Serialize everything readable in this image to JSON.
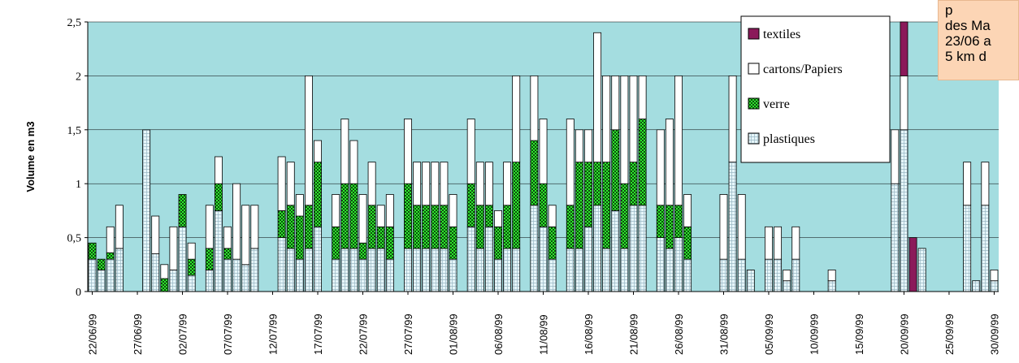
{
  "chart_data": {
    "type": "bar",
    "stacked": true,
    "ylabel": "Volume en m3",
    "xlabel": "",
    "ylim": [
      0,
      2.5
    ],
    "yticks": [
      "0",
      "0,5",
      "1",
      "1,5",
      "2",
      "2,5"
    ],
    "y_gridlines": true,
    "background": "#a4dde0",
    "legend_position": "top-right",
    "x_tick_labels": [
      "22/06/99",
      "27/06/99",
      "02/07/99",
      "07/07/99",
      "12/07/99",
      "17/07/99",
      "22/07/99",
      "27/07/99",
      "01/08/99",
      "06/08/99",
      "11/08/99",
      "16/08/99",
      "21/08/99",
      "26/08/99",
      "31/08/99",
      "05/09/99",
      "10/09/99",
      "15/09/99",
      "20/09/99",
      "25/09/99",
      "30/09/99"
    ],
    "categories": [
      "22/06/99",
      "23/06/99",
      "24/06/99",
      "25/06/99",
      "26/06/99",
      "27/06/99",
      "28/06/99",
      "29/06/99",
      "30/06/99",
      "01/07/99",
      "02/07/99",
      "03/07/99",
      "04/07/99",
      "05/07/99",
      "06/07/99",
      "07/07/99",
      "08/07/99",
      "09/07/99",
      "10/07/99",
      "11/07/99",
      "12/07/99",
      "13/07/99",
      "14/07/99",
      "15/07/99",
      "16/07/99",
      "17/07/99",
      "18/07/99",
      "19/07/99",
      "20/07/99",
      "21/07/99",
      "22/07/99",
      "23/07/99",
      "24/07/99",
      "25/07/99",
      "26/07/99",
      "27/07/99",
      "28/07/99",
      "29/07/99",
      "30/07/99",
      "31/07/99",
      "01/08/99",
      "02/08/99",
      "03/08/99",
      "04/08/99",
      "05/08/99",
      "06/08/99",
      "07/08/99",
      "08/08/99",
      "09/08/99",
      "10/08/99",
      "11/08/99",
      "12/08/99",
      "13/08/99",
      "14/08/99",
      "15/08/99",
      "16/08/99",
      "17/08/99",
      "18/08/99",
      "19/08/99",
      "20/08/99",
      "21/08/99",
      "22/08/99",
      "23/08/99",
      "24/08/99",
      "25/08/99",
      "26/08/99",
      "27/08/99",
      "28/08/99",
      "29/08/99",
      "30/08/99",
      "31/08/99",
      "01/09/99",
      "02/09/99",
      "03/09/99",
      "04/09/99",
      "05/09/99",
      "06/09/99",
      "07/09/99",
      "08/09/99",
      "09/09/99",
      "10/09/99",
      "11/09/99",
      "12/09/99",
      "13/09/99",
      "14/09/99",
      "15/09/99",
      "16/09/99",
      "17/09/99",
      "18/09/99",
      "19/09/99",
      "20/09/99",
      "21/09/99",
      "22/09/99",
      "23/09/99",
      "24/09/99",
      "25/09/99",
      "26/09/99",
      "27/09/99",
      "28/09/99",
      "29/09/99",
      "30/09/99"
    ],
    "series": [
      {
        "name": "plastiques",
        "color": "#e0f4f8",
        "pattern": "grid",
        "values": [
          0.3,
          0.2,
          0.3,
          0.4,
          0,
          0,
          1.5,
          0.35,
          0,
          0.2,
          0.6,
          0.15,
          0,
          0.2,
          0.75,
          0.3,
          0.3,
          0.25,
          0.4,
          0,
          0,
          0.5,
          0.4,
          0.3,
          0.4,
          0.6,
          0,
          0.3,
          0.4,
          0.4,
          0.3,
          0.4,
          0.4,
          0.3,
          0,
          0.4,
          0.4,
          0.4,
          0.4,
          0.4,
          0.3,
          0,
          0.6,
          0.4,
          0.6,
          0.3,
          0.4,
          0.4,
          0,
          0.8,
          0.6,
          0.3,
          0,
          0.4,
          0.4,
          0.6,
          0.8,
          0.4,
          0.75,
          0.4,
          0.8,
          0.8,
          0,
          0.5,
          0.4,
          0.5,
          0.3,
          0,
          0,
          0,
          0.3,
          1.2,
          0.3,
          0.2,
          0,
          0.3,
          0.3,
          0.1,
          0.3,
          0,
          0,
          0,
          0.1,
          0,
          0,
          0,
          0,
          0,
          0,
          1.0,
          1.5,
          0,
          0.4,
          0,
          0,
          0,
          0,
          0.8,
          0.1,
          0.8,
          0.1
        ]
      },
      {
        "name": "verre",
        "color": "#1ec81e",
        "pattern": "checker",
        "values": [
          0.15,
          0.1,
          0.06,
          0,
          0,
          0,
          0,
          0,
          0.12,
          0,
          0.3,
          0.15,
          0,
          0.2,
          0.25,
          0.1,
          0,
          0,
          0,
          0,
          0,
          0.25,
          0.4,
          0.4,
          0.4,
          0.6,
          0,
          0.3,
          0.6,
          0.6,
          0.15,
          0.4,
          0.2,
          0.3,
          0,
          0.6,
          0.4,
          0.4,
          0.4,
          0.4,
          0.3,
          0,
          0.4,
          0.4,
          0.2,
          0.3,
          0.4,
          0.8,
          0,
          0.6,
          0.4,
          0.3,
          0,
          0.4,
          0.8,
          0.6,
          0.4,
          0.8,
          0.75,
          0.6,
          0.4,
          0.8,
          0,
          0.3,
          0.4,
          0.3,
          0.3,
          0,
          0,
          0,
          0,
          0,
          0,
          0,
          0,
          0,
          0,
          0,
          0,
          0,
          0,
          0,
          0,
          0,
          0,
          0,
          0,
          0,
          0,
          0,
          0,
          0,
          0,
          0,
          0,
          0,
          0,
          0,
          0,
          0,
          0
        ]
      },
      {
        "name": "cartons/Papiers",
        "color": "#ffffff",
        "pattern": "solid",
        "values": [
          0,
          0,
          0.24,
          0.4,
          0,
          0,
          0,
          0.35,
          0.13,
          0.4,
          0,
          0.15,
          0,
          0.4,
          0.25,
          0.2,
          0.7,
          0.55,
          0.4,
          0,
          0,
          0.5,
          0.4,
          0.2,
          1.2,
          0.2,
          0,
          0.3,
          0.6,
          0.4,
          0.45,
          0.4,
          0.2,
          0.3,
          0,
          0.6,
          0.4,
          0.4,
          0.4,
          0.4,
          0.3,
          0,
          0.6,
          0.4,
          0.4,
          0.15,
          0.4,
          0.8,
          0,
          0.6,
          0.6,
          0.2,
          0,
          0.8,
          0.3,
          0.3,
          1.2,
          0.8,
          0.5,
          1.0,
          0.8,
          0.4,
          0,
          0.7,
          0.8,
          1.2,
          0.3,
          0,
          0,
          0,
          0.6,
          0.8,
          0.6,
          0,
          0,
          0.3,
          0.3,
          0.1,
          0.3,
          0,
          0,
          0,
          0.1,
          0,
          0,
          0,
          0,
          0,
          0,
          0.5,
          0.5,
          0,
          0,
          0,
          0,
          0,
          0,
          0.4,
          0,
          0.4,
          0.1
        ]
      },
      {
        "name": "textiles",
        "color": "#8b1a5a",
        "pattern": "solid",
        "values": [
          0,
          0,
          0,
          0,
          0,
          0,
          0,
          0,
          0,
          0,
          0,
          0,
          0,
          0,
          0,
          0,
          0,
          0,
          0,
          0,
          0,
          0,
          0,
          0,
          0,
          0,
          0,
          0,
          0,
          0,
          0,
          0,
          0,
          0,
          0,
          0,
          0,
          0,
          0,
          0,
          0,
          0,
          0,
          0,
          0,
          0,
          0,
          0,
          0,
          0,
          0,
          0,
          0,
          0,
          0,
          0,
          0,
          0,
          0,
          0,
          0,
          0,
          0,
          0,
          0,
          0,
          0,
          0,
          0,
          0,
          0,
          0,
          0,
          0,
          0,
          0,
          0,
          0,
          0,
          0,
          0,
          0,
          0,
          0,
          0,
          0,
          0,
          0,
          0,
          0,
          0.5,
          0.5,
          0,
          0,
          0,
          0,
          0,
          0,
          0,
          0,
          0
        ]
      }
    ],
    "legend": [
      "textiles",
      "cartons/Papiers",
      "verre",
      "plastiques"
    ]
  },
  "note_box": {
    "lines": [
      "p",
      "des Ma",
      "23/06 a",
      "5 km d"
    ]
  }
}
